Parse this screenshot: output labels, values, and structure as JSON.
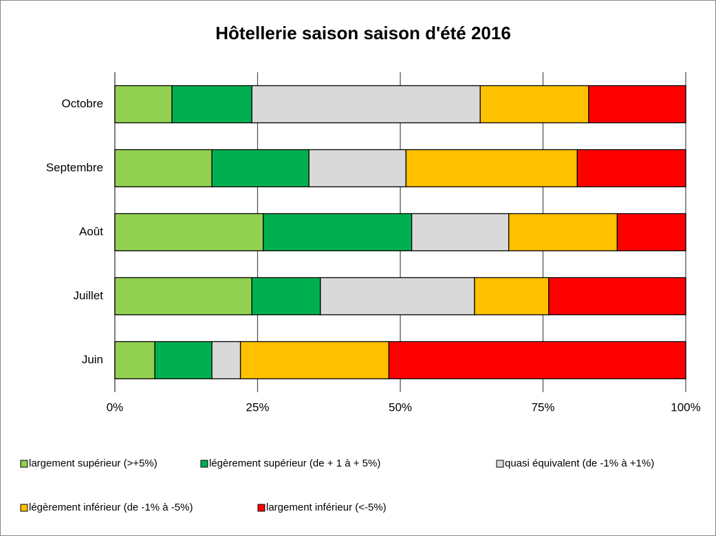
{
  "chart_data": {
    "type": "stacked-bar-horizontal",
    "title": "Hôtellerie saison saison d'été 2016",
    "categories": [
      "Octobre",
      "Septembre",
      "Août",
      "Juillet",
      "Juin"
    ],
    "series": [
      {
        "name": "largement supérieur (>+5%)",
        "color": "#92d050",
        "values": [
          10,
          17,
          26,
          24,
          7
        ]
      },
      {
        "name": "légèrement supérieur (de + 1 à + 5%)",
        "color": "#00b050",
        "values": [
          14,
          17,
          26,
          12,
          10
        ]
      },
      {
        "name": "quasi équivalent (de  -1% à +1%)",
        "color": "#d9d9d9",
        "values": [
          40,
          17,
          17,
          27,
          5
        ]
      },
      {
        "name": "légèrement inférieur (de -1% à -5%)",
        "color": "#ffc000",
        "values": [
          19,
          30,
          19,
          13,
          26
        ]
      },
      {
        "name": "largement inférieur (<-5%)",
        "color": "#ff0000",
        "values": [
          17,
          19,
          12,
          24,
          52
        ]
      }
    ],
    "xlim": [
      0,
      100
    ],
    "xticks": [
      {
        "value": 0,
        "label": "0%"
      },
      {
        "value": 25,
        "label": "25%"
      },
      {
        "value": 50,
        "label": "50%"
      },
      {
        "value": 75,
        "label": "75%"
      },
      {
        "value": 100,
        "label": "100%"
      }
    ],
    "grid": true,
    "legend": "bottom"
  }
}
